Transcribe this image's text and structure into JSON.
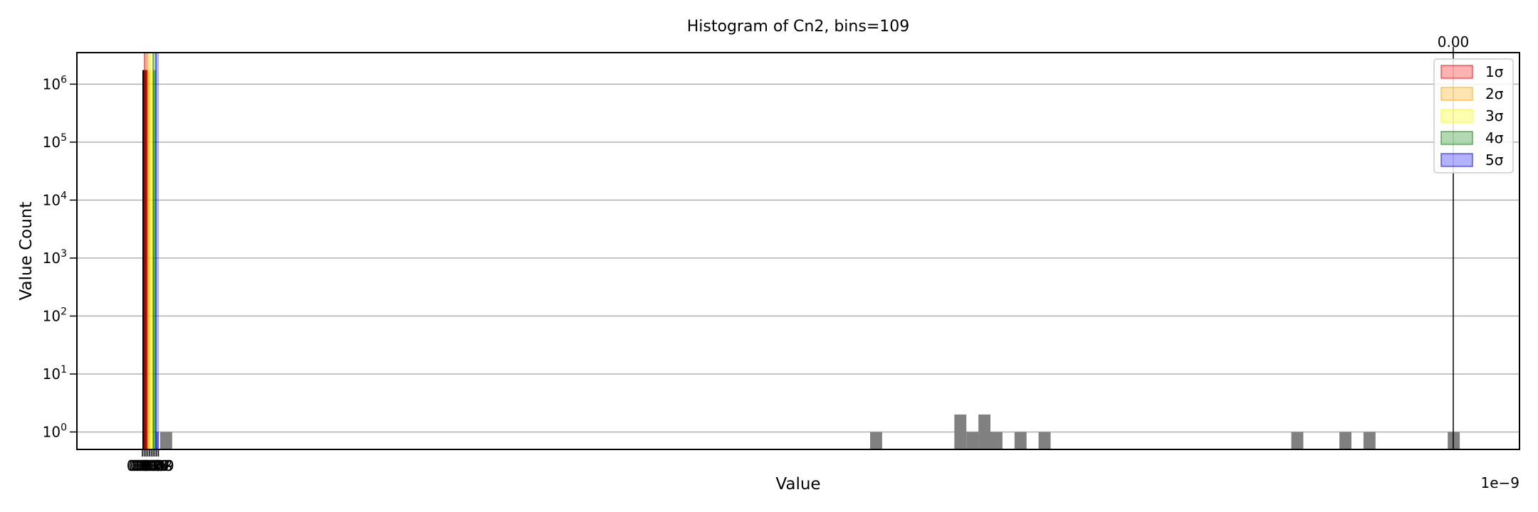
{
  "chart_data": {
    "type": "bar",
    "title": "Histogram of Cn2, bins=109",
    "xlabel": "Value",
    "ylabel": "Value Count",
    "x_offset_label": "1e−9",
    "yscale": "log",
    "ylim": [
      0.5,
      3500000
    ],
    "grid": "y-major",
    "legend_position": "top-right",
    "top_marker_label": "0.00",
    "y_ticks": [
      {
        "base": "10",
        "exp": "0",
        "value": 1
      },
      {
        "base": "10",
        "exp": "1",
        "value": 10
      },
      {
        "base": "10",
        "exp": "2",
        "value": 100
      },
      {
        "base": "10",
        "exp": "3",
        "value": 1000
      },
      {
        "base": "10",
        "exp": "4",
        "value": 10000
      },
      {
        "base": "10",
        "exp": "5",
        "value": 100000
      },
      {
        "base": "10",
        "exp": "6",
        "value": 1000000
      }
    ],
    "x_tick_labels": [
      "0.00",
      "0.01",
      "0.02",
      "0.03",
      "0.04",
      "0.05",
      "0.06",
      "0.07",
      "0.08",
      "0.09"
    ],
    "bins": {
      "count": 109,
      "counts": [
        1750000,
        1,
        0,
        0,
        0,
        0,
        0,
        0,
        0,
        0,
        0,
        0,
        0,
        0,
        0,
        0,
        0,
        0,
        0,
        0,
        0,
        0,
        0,
        0,
        0,
        0,
        0,
        0,
        0,
        0,
        0,
        0,
        0,
        0,
        0,
        0,
        0,
        0,
        0,
        0,
        0,
        0,
        0,
        0,
        0,
        0,
        0,
        0,
        0,
        0,
        0,
        0,
        0,
        0,
        0,
        0,
        0,
        0,
        0,
        0,
        1,
        0,
        0,
        0,
        0,
        0,
        0,
        2,
        1,
        2,
        1,
        0,
        1,
        0,
        1,
        0,
        0,
        0,
        0,
        0,
        0,
        0,
        0,
        0,
        0,
        0,
        0,
        0,
        0,
        0,
        0,
        0,
        0,
        0,
        0,
        1,
        0,
        0,
        0,
        1,
        0,
        1,
        0,
        0,
        0,
        0,
        0,
        0,
        1
      ]
    },
    "sigma_bands": [
      {
        "label": "1σ",
        "color": "#ff0000",
        "count": 1750000
      },
      {
        "label": "2σ",
        "color": "#ffa500",
        "count": 1750000
      },
      {
        "label": "3σ",
        "color": "#ffff00",
        "count": 1750000
      },
      {
        "label": "4σ",
        "color": "#008000",
        "count": 1750000
      },
      {
        "label": "5σ",
        "color": "#0000ff",
        "count": 1
      }
    ],
    "bar_color": "#808080"
  }
}
